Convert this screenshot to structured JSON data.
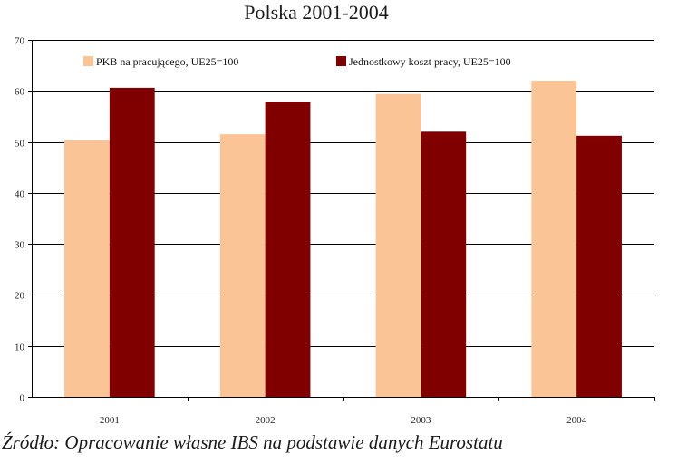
{
  "chart_data": {
    "type": "bar",
    "title": "Polska 2001-2004",
    "categories": [
      "2001",
      "2002",
      "2003",
      "2004"
    ],
    "series": [
      {
        "name": "PKB na pracującego, UE25=100",
        "values": [
          50.3,
          51.5,
          59.4,
          62.0
        ],
        "color": "#fbc496"
      },
      {
        "name": "Jednostkowy koszt pracy, UE25=100",
        "values": [
          60.6,
          57.9,
          52.0,
          51.2
        ],
        "color": "#800000"
      }
    ],
    "ylim": [
      0,
      70
    ],
    "yticks": [
      0,
      10,
      20,
      30,
      40,
      50,
      60,
      70
    ],
    "xlabel": "",
    "ylabel": "",
    "grid": true,
    "legend": "top"
  },
  "source": "Źródło: Opracowanie własne IBS na podstawie danych Eurostatu"
}
